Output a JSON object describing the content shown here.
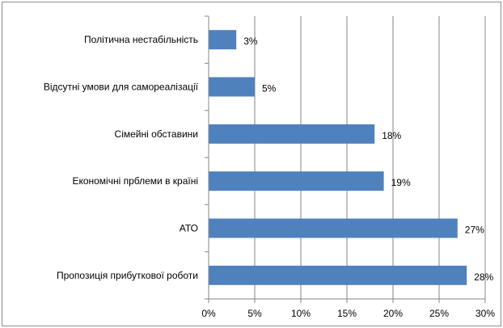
{
  "chart_data": {
    "type": "bar",
    "orientation": "horizontal",
    "categories": [
      "Пропозиція прибуткової роботи",
      "АТО",
      "Економічні прблеми в країні",
      "Сімейні обставини",
      "Відсутні умови для самореалізації",
      "Політична нестабільність"
    ],
    "values": [
      28,
      27,
      19,
      18,
      5,
      3
    ],
    "data_labels": [
      "28%",
      "27%",
      "19%",
      "18%",
      "5%",
      "3%"
    ],
    "x_ticks": [
      "0%",
      "5%",
      "10%",
      "15%",
      "20%",
      "25%",
      "30%"
    ],
    "xlim": [
      0,
      30
    ],
    "grid": "vertical",
    "legend": "none",
    "title": "",
    "xlabel": "",
    "ylabel": "",
    "colors": {
      "bar": "#4f81bd",
      "grid": "#868686",
      "axis": "#868686"
    }
  }
}
